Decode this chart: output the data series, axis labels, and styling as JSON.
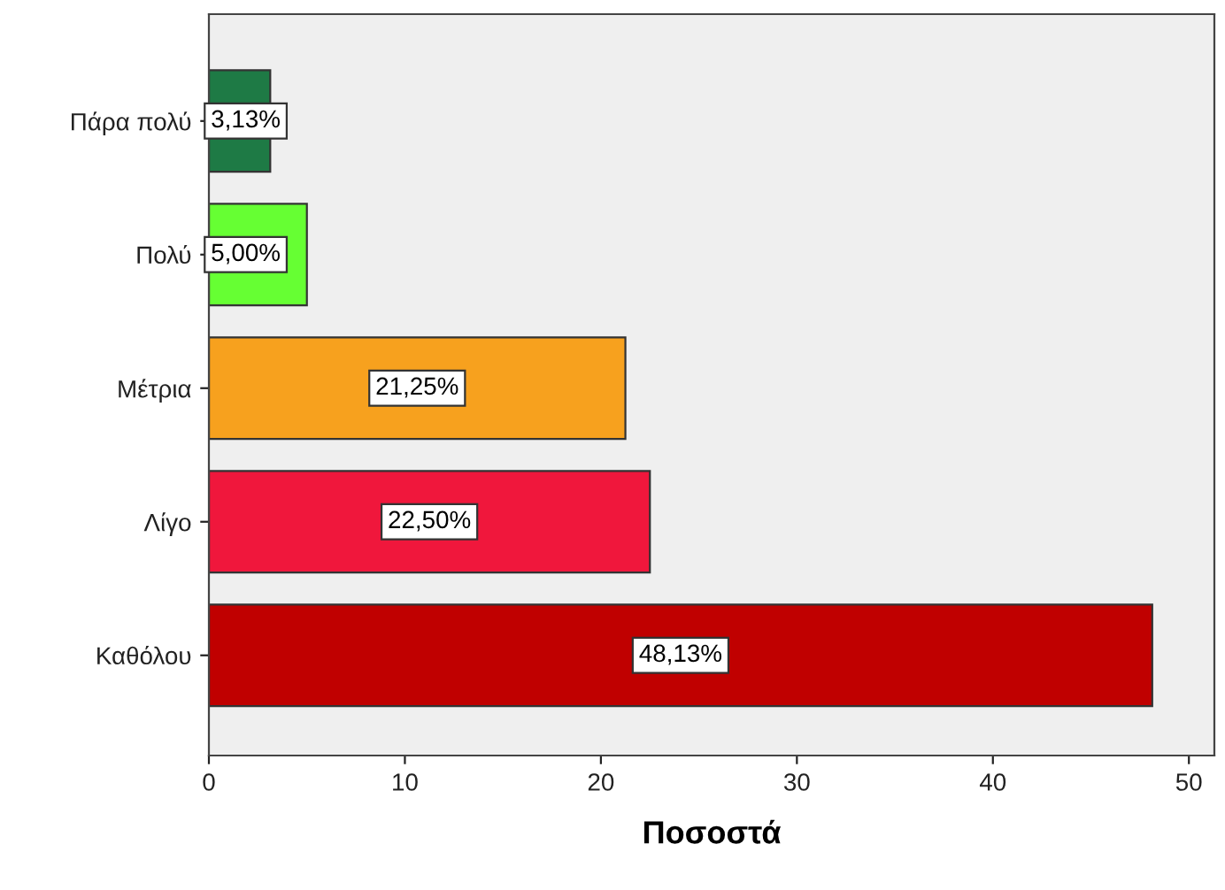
{
  "chart_data": {
    "type": "bar",
    "orientation": "horizontal",
    "xlabel": "Ποσοστά",
    "categories": [
      "Πάρα πολύ",
      "Πολύ",
      "Μέτρια",
      "Λίγο",
      "Καθόλου"
    ],
    "values": [
      3.13,
      5.0,
      21.25,
      22.5,
      48.13
    ],
    "colors": [
      "#1e7a45",
      "#66ff33",
      "#f7a11e",
      "#f0173c",
      "#c00000"
    ],
    "value_labels": [
      "3,13%",
      "5,00%",
      "21,25%",
      "22,50%",
      "48,13%"
    ],
    "xlim": [
      0,
      51.3
    ],
    "xticks": [
      0,
      10,
      20,
      30,
      40,
      50
    ],
    "grid": false
  }
}
